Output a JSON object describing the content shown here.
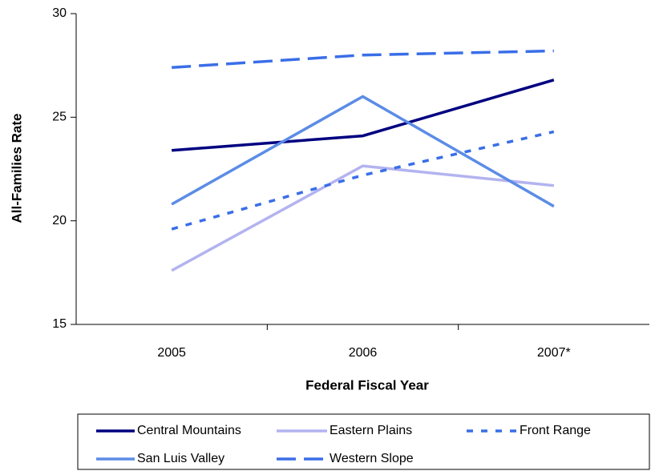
{
  "chart_data": {
    "type": "line",
    "x_label": "Federal Fiscal Year",
    "y_label": "All-Families Rate",
    "categories": [
      "2005",
      "2006",
      "2007*"
    ],
    "ylim": [
      15,
      30
    ],
    "yticks": [
      15,
      20,
      25,
      30
    ],
    "grid": false,
    "legend": "bottom",
    "series": [
      {
        "name": "Central Mountains",
        "color": "#000080",
        "dash": "solid",
        "values": [
          23.4,
          24.1,
          26.8
        ]
      },
      {
        "name": "Eastern Plains",
        "color": "#b3b3f0",
        "dash": "solid",
        "values": [
          17.6,
          22.65,
          21.7
        ]
      },
      {
        "name": "Front Range",
        "color": "#3a6ee8",
        "dash": "dotted",
        "values": [
          19.6,
          22.2,
          24.3
        ]
      },
      {
        "name": "San Luis Valley",
        "color": "#5b8ce6",
        "dash": "solid",
        "values": [
          20.8,
          26.0,
          20.7
        ]
      },
      {
        "name": "Western Slope",
        "color": "#3a6ee8",
        "dash": "dashed",
        "values": [
          27.4,
          28.0,
          28.2
        ]
      }
    ]
  }
}
